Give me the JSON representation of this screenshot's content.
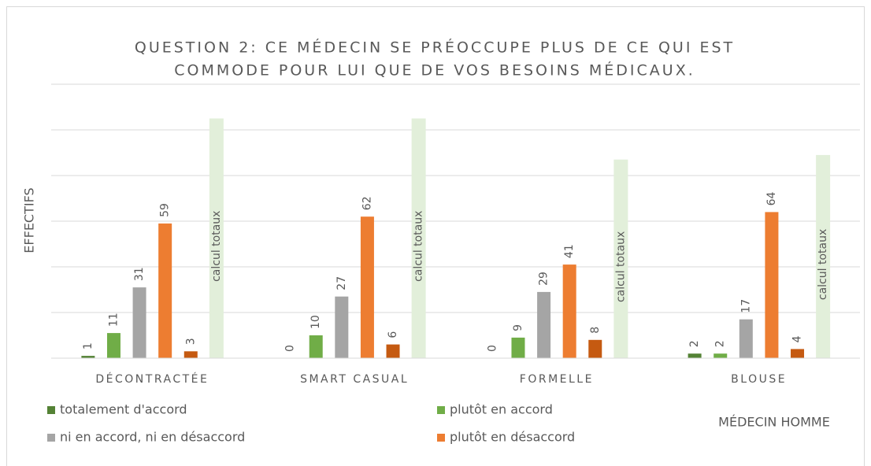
{
  "chart_data": {
    "type": "bar",
    "title": [
      "QUESTION 2: CE MÉDECIN SE PRÉOCCUPE PLUS DE CE QUI EST",
      "COMMODE POUR LUI QUE DE VOS BESOINS MÉDICAUX."
    ],
    "y_label": "EFFECTIFS",
    "annotation": "MÉDECIN HOMME",
    "categories": [
      "DÉCONTRACTÉE",
      "SMART CASUAL",
      "FORMELLE",
      "BLOUSE"
    ],
    "series": [
      {
        "name": "totalement d'accord",
        "color": "#548235",
        "values": [
          1,
          0,
          0,
          2
        ]
      },
      {
        "name": "plutôt en accord",
        "color": "#70ad47",
        "values": [
          11,
          10,
          9,
          2
        ]
      },
      {
        "name": "ni en accord, ni en désaccord",
        "color": "#a5a5a5",
        "values": [
          31,
          27,
          29,
          17
        ]
      },
      {
        "name": "plutôt en désaccord",
        "color": "#ed7d31",
        "values": [
          59,
          62,
          41,
          64
        ]
      },
      {
        "color": "#c55a11",
        "values": [
          3,
          6,
          8,
          4
        ]
      },
      {
        "name": "calcul totaux",
        "color": "#e2efda",
        "values": [
          105,
          105,
          87,
          89
        ]
      }
    ],
    "ylim": [
      0,
      120
    ],
    "yticks": [
      0,
      20,
      40,
      60,
      80,
      100,
      120
    ],
    "grid": true
  }
}
